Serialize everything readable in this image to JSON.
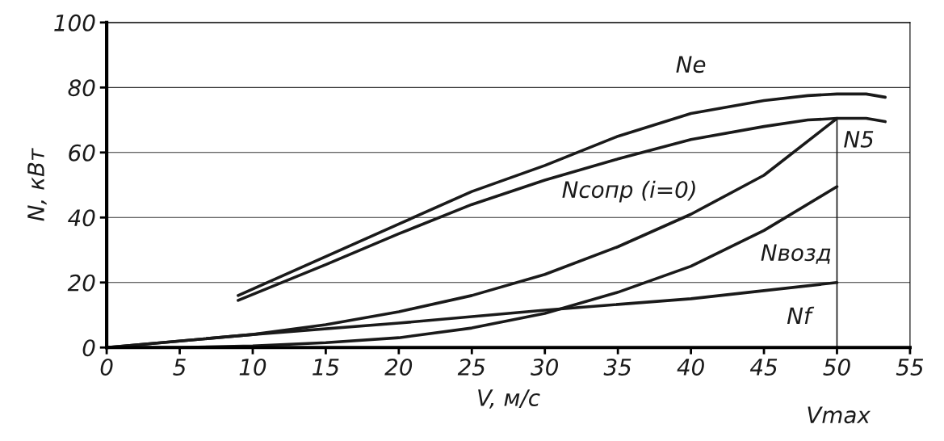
{
  "chart_data": {
    "type": "line",
    "xlabel": "V, м/с",
    "ylabel": "N, кВт",
    "xlim": [
      0,
      55
    ],
    "xticks": [
      0,
      5,
      10,
      15,
      20,
      25,
      30,
      35,
      40,
      45,
      50,
      55
    ],
    "ylim": [
      0,
      100
    ],
    "yticks": [
      0,
      20,
      40,
      60,
      80,
      100
    ],
    "grid": "y",
    "marker": "none",
    "line_style": "solid",
    "series": [
      {
        "name": "Ne",
        "color": "#1a1a1a",
        "x": [
          9,
          15,
          20,
          25,
          30,
          35,
          40,
          45,
          48,
          50,
          52,
          53.3
        ],
        "values": [
          16,
          28,
          38,
          48,
          56,
          65,
          72,
          76,
          77.5,
          78,
          78,
          77
        ]
      },
      {
        "name": "N5",
        "color": "#1a1a1a",
        "x": [
          9,
          15,
          20,
          25,
          30,
          35,
          40,
          45,
          48,
          50,
          52,
          53.3
        ],
        "values": [
          14.5,
          25.5,
          35,
          44,
          51.5,
          58,
          64,
          68,
          70,
          70.5,
          70.5,
          69.5
        ]
      },
      {
        "name": "Ncопр (i=0)",
        "color": "#1a1a1a",
        "x": [
          0,
          5,
          10,
          15,
          20,
          25,
          30,
          35,
          40,
          45,
          50
        ],
        "values": [
          0,
          2,
          4,
          7,
          11,
          16,
          22.5,
          31,
          41,
          53,
          70.5
        ]
      },
      {
        "name": "Nвозд",
        "color": "#1a1a1a",
        "x": [
          0,
          5,
          10,
          15,
          20,
          25,
          30,
          35,
          40,
          45,
          50
        ],
        "values": [
          0,
          0,
          0.5,
          1.5,
          3,
          6,
          10.5,
          17,
          25,
          36,
          49.5
        ]
      },
      {
        "name": "Nf",
        "color": "#1a1a1a",
        "x": [
          0,
          10,
          20,
          30,
          40,
          50
        ],
        "values": [
          0,
          4,
          7.5,
          11.5,
          15,
          20
        ]
      },
      {
        "color": "#1a1a1a",
        "x": [
          50,
          50
        ],
        "values": [
          0,
          70.5
        ]
      }
    ],
    "annotations": [
      "Vmax"
    ]
  }
}
